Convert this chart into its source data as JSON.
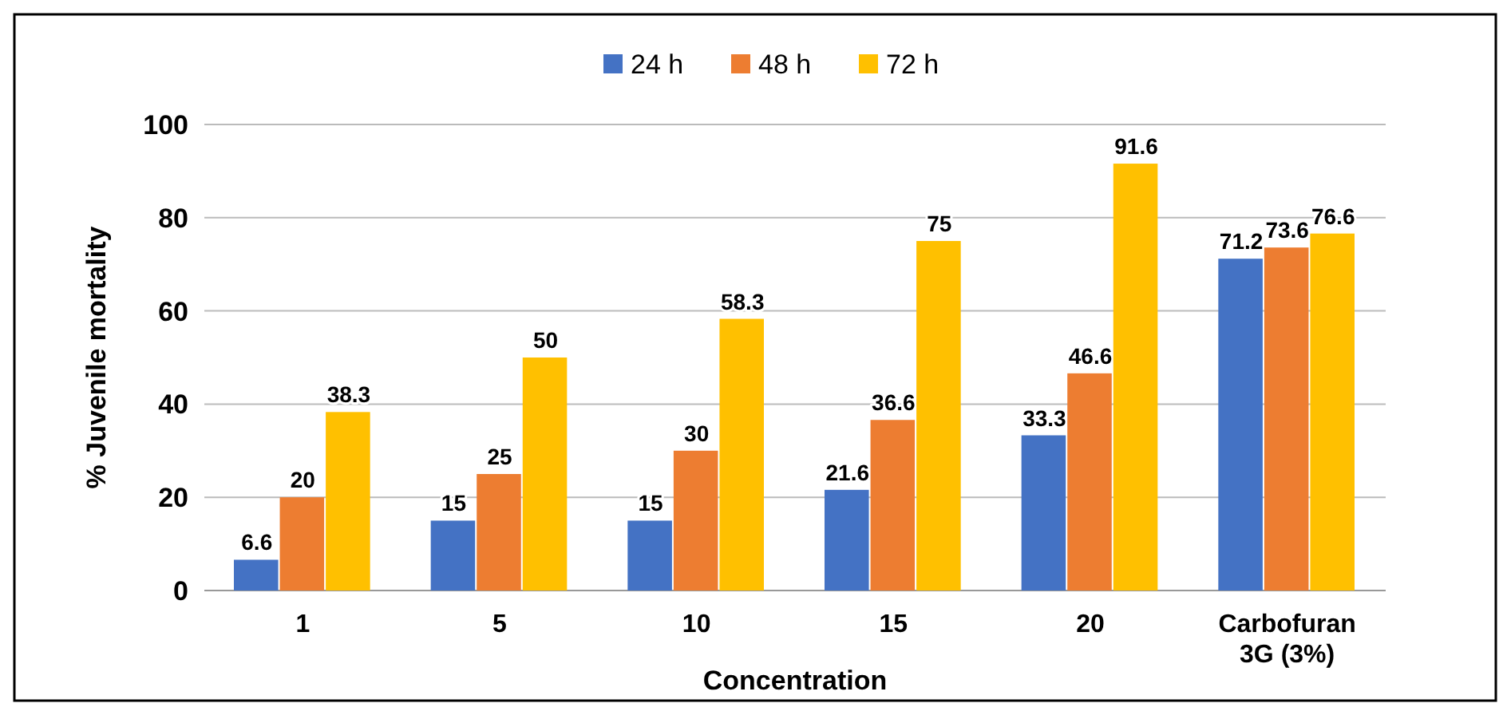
{
  "chart_data": {
    "type": "bar",
    "xlabel": "Concentration",
    "ylabel": "% Juvenile mortality",
    "categories": [
      "1",
      "5",
      "10",
      "15",
      "20",
      "Carbofuran 3G (3%)"
    ],
    "series": [
      {
        "name": "24 h",
        "color": "#4472c4",
        "values": [
          6.6,
          15,
          15,
          21.6,
          33.3,
          71.2
        ]
      },
      {
        "name": "48 h",
        "color": "#ed7d31",
        "values": [
          20,
          25,
          30,
          36.6,
          46.6,
          73.6
        ]
      },
      {
        "name": "72 h",
        "color": "#ffc000",
        "values": [
          38.3,
          50,
          58.3,
          75,
          91.6,
          76.6
        ]
      }
    ],
    "ylim": [
      0,
      100
    ],
    "yticks": [
      0,
      20,
      40,
      60,
      80,
      100
    ],
    "grid": "y",
    "legend": "top",
    "data_labels": true
  }
}
